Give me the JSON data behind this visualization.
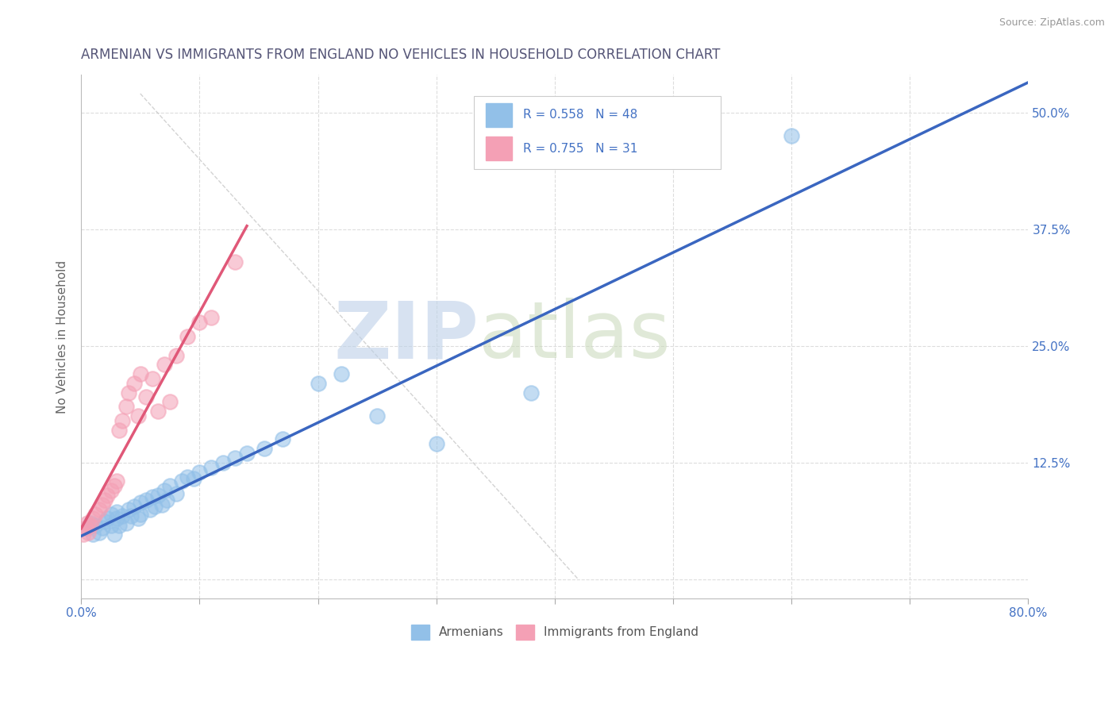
{
  "title": "ARMENIAN VS IMMIGRANTS FROM ENGLAND NO VEHICLES IN HOUSEHOLD CORRELATION CHART",
  "source_text": "Source: ZipAtlas.com",
  "ylabel": "No Vehicles in Household",
  "xlim": [
    0.0,
    0.8
  ],
  "ylim": [
    -0.02,
    0.54
  ],
  "xticks": [
    0.0,
    0.1,
    0.2,
    0.3,
    0.4,
    0.5,
    0.6,
    0.7,
    0.8
  ],
  "xticklabels": [
    "0.0%",
    "",
    "",
    "",
    "",
    "",
    "",
    "",
    "80.0%"
  ],
  "ytick_positions": [
    0.0,
    0.125,
    0.25,
    0.375,
    0.5
  ],
  "ytick_labels": [
    "",
    "12.5%",
    "25.0%",
    "37.5%",
    "50.0%"
  ],
  "armenian_color": "#92C0E8",
  "england_color": "#F4A0B5",
  "trend_blue": "#3A66C0",
  "trend_pink": "#E05878",
  "diag_color": "#C8C8C8",
  "background_color": "#FFFFFF",
  "grid_color": "#DDDDDD",
  "armenians_x": [
    0.005,
    0.008,
    0.01,
    0.012,
    0.015,
    0.018,
    0.02,
    0.022,
    0.025,
    0.025,
    0.028,
    0.03,
    0.03,
    0.032,
    0.035,
    0.038,
    0.04,
    0.042,
    0.045,
    0.048,
    0.05,
    0.05,
    0.055,
    0.058,
    0.06,
    0.062,
    0.065,
    0.068,
    0.07,
    0.072,
    0.075,
    0.08,
    0.085,
    0.09,
    0.095,
    0.1,
    0.11,
    0.12,
    0.13,
    0.14,
    0.155,
    0.17,
    0.2,
    0.22,
    0.25,
    0.3,
    0.38,
    0.6
  ],
  "armenians_y": [
    0.055,
    0.06,
    0.048,
    0.058,
    0.05,
    0.055,
    0.062,
    0.065,
    0.07,
    0.058,
    0.048,
    0.065,
    0.072,
    0.058,
    0.068,
    0.06,
    0.075,
    0.068,
    0.078,
    0.065,
    0.082,
    0.07,
    0.085,
    0.075,
    0.088,
    0.078,
    0.09,
    0.08,
    0.095,
    0.085,
    0.1,
    0.092,
    0.105,
    0.11,
    0.108,
    0.115,
    0.12,
    0.125,
    0.13,
    0.135,
    0.14,
    0.15,
    0.21,
    0.22,
    0.175,
    0.145,
    0.2,
    0.475
  ],
  "england_x": [
    0.002,
    0.004,
    0.005,
    0.006,
    0.008,
    0.01,
    0.012,
    0.015,
    0.018,
    0.02,
    0.022,
    0.025,
    0.028,
    0.03,
    0.032,
    0.035,
    0.038,
    0.04,
    0.045,
    0.048,
    0.05,
    0.055,
    0.06,
    0.065,
    0.07,
    0.075,
    0.08,
    0.09,
    0.1,
    0.11,
    0.13
  ],
  "england_y": [
    0.048,
    0.055,
    0.06,
    0.05,
    0.058,
    0.065,
    0.07,
    0.075,
    0.08,
    0.085,
    0.09,
    0.095,
    0.1,
    0.105,
    0.16,
    0.17,
    0.185,
    0.2,
    0.21,
    0.175,
    0.22,
    0.195,
    0.215,
    0.18,
    0.23,
    0.19,
    0.24,
    0.26,
    0.275,
    0.28,
    0.34
  ]
}
